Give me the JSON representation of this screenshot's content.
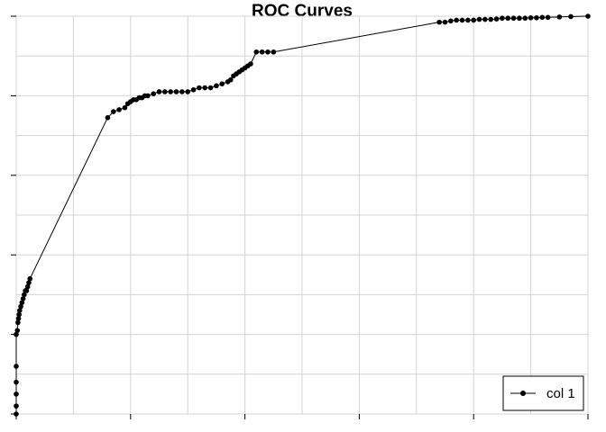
{
  "chart_data": {
    "type": "line",
    "title": "ROC Curves",
    "xlabel": "",
    "ylabel": "",
    "xlim": [
      0,
      1
    ],
    "ylim": [
      0,
      1
    ],
    "xticks": [
      0,
      0.2,
      0.4,
      0.6,
      0.8,
      1.0
    ],
    "yticks": [
      0,
      0.2,
      0.4,
      0.6,
      0.8,
      1.0
    ],
    "grid": true,
    "legend_position": "bottom-right",
    "series": [
      {
        "name": "col 1",
        "color": "#000000",
        "x": [
          0,
          0,
          0,
          0,
          0,
          0,
          0.002,
          0.003,
          0.004,
          0.005,
          0.006,
          0.008,
          0.01,
          0.012,
          0.014,
          0.016,
          0.018,
          0.02,
          0.022,
          0.024,
          0.16,
          0.17,
          0.18,
          0.19,
          0.195,
          0.2,
          0.205,
          0.21,
          0.215,
          0.22,
          0.225,
          0.23,
          0.24,
          0.25,
          0.26,
          0.27,
          0.28,
          0.29,
          0.3,
          0.31,
          0.32,
          0.33,
          0.34,
          0.35,
          0.36,
          0.37,
          0.375,
          0.38,
          0.385,
          0.39,
          0.395,
          0.4,
          0.405,
          0.41,
          0.42,
          0.43,
          0.44,
          0.45,
          0.74,
          0.75,
          0.76,
          0.77,
          0.78,
          0.79,
          0.8,
          0.81,
          0.82,
          0.83,
          0.84,
          0.85,
          0.86,
          0.87,
          0.88,
          0.89,
          0.9,
          0.91,
          0.92,
          0.93,
          0.95,
          0.97,
          1.0
        ],
        "y": [
          0,
          0.02,
          0.05,
          0.08,
          0.12,
          0.2,
          0.21,
          0.23,
          0.24,
          0.25,
          0.26,
          0.27,
          0.28,
          0.29,
          0.3,
          0.31,
          0.31,
          0.32,
          0.33,
          0.34,
          0.745,
          0.76,
          0.765,
          0.77,
          0.78,
          0.785,
          0.79,
          0.79,
          0.795,
          0.795,
          0.8,
          0.8,
          0.805,
          0.81,
          0.81,
          0.81,
          0.81,
          0.81,
          0.81,
          0.815,
          0.82,
          0.82,
          0.82,
          0.825,
          0.83,
          0.835,
          0.84,
          0.85,
          0.855,
          0.86,
          0.865,
          0.87,
          0.875,
          0.88,
          0.91,
          0.91,
          0.91,
          0.91,
          0.985,
          0.985,
          0.988,
          0.99,
          0.99,
          0.99,
          0.99,
          0.992,
          0.992,
          0.992,
          0.993,
          0.995,
          0.995,
          0.995,
          0.995,
          0.995,
          0.996,
          0.996,
          0.997,
          0.997,
          0.998,
          0.999,
          1.0
        ]
      }
    ]
  }
}
